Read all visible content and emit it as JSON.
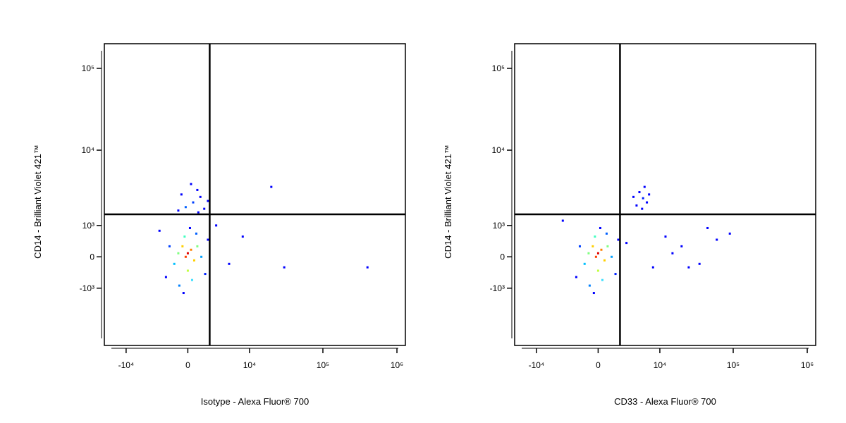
{
  "chart_data": [
    {
      "type": "scatter",
      "x_label": "Isotype - Alexa Fluor® 700",
      "y_label": "CD14 - Brilliant Violet 421™",
      "xlim": [
        -20000,
        1300000
      ],
      "ylim": [
        -6000,
        200000
      ],
      "xticks": [
        {
          "value": -10000,
          "label": "-10⁴"
        },
        0,
        {
          "value": 10000,
          "label": "10⁴"
        },
        {
          "value": 100000,
          "label": "10⁵"
        },
        {
          "value": 1000000,
          "label": "10⁶"
        }
      ],
      "yticks": [
        {
          "value": -1000,
          "label": "-10³"
        },
        0,
        {
          "value": 1000,
          "label": "10³"
        },
        {
          "value": 10000,
          "label": "10⁴"
        },
        {
          "value": 100000,
          "label": "10⁵"
        }
      ],
      "gate": {
        "x": 2200,
        "y": 1500
      },
      "x": [
        0,
        -200,
        300,
        -500,
        600,
        0,
        -900,
        900,
        -300,
        400,
        -1300,
        1300,
        -800,
        800,
        -1800,
        1700,
        -400,
        200,
        -2200,
        2000,
        500,
        1200,
        -200,
        900,
        1600,
        -600,
        300,
        2000,
        1000,
        -900,
        20000,
        8000,
        5000,
        30000,
        400000,
        3000,
        -3000
      ],
      "values": [
        100,
        0,
        200,
        300,
        -100,
        -400,
        100,
        300,
        600,
        -700,
        -200,
        0,
        -900,
        700,
        300,
        -500,
        -1200,
        900,
        -600,
        500,
        2200,
        2600,
        1900,
        3200,
        1800,
        2800,
        3800,
        2300,
        1600,
        1700,
        3500,
        600,
        -200,
        -300,
        -300,
        1000,
        800
      ],
      "colors": [
        "#e00000",
        "#ff4000",
        "#ff8000",
        "#ffd000",
        "#ffd000",
        "#c0ff40",
        "#80ff80",
        "#80ff80",
        "#40ffc0",
        "#40e0ff",
        "#00c0ff",
        "#00a0ff",
        "#0080ff",
        "#0060ff",
        "#0040ff",
        "#0020ff",
        "#0000ff",
        "#0000ff",
        "#0000ff",
        "#0000ff",
        "#0040ff",
        "#0000ff",
        "#0060ff",
        "#0000ff",
        "#0000ff",
        "#0000ff",
        "#0000ff",
        "#0000ff",
        "#0000ff",
        "#0000ff",
        "#0000ff",
        "#0000ff",
        "#0000ff",
        "#0000ff",
        "#0000ff",
        "#0000ff",
        "#0000ff"
      ]
    },
    {
      "type": "scatter",
      "x_label": "CD33 - Alexa Fluor® 700",
      "y_label": "CD14 - Brilliant Violet 421™",
      "xlim": [
        -20000,
        1300000
      ],
      "ylim": [
        -6000,
        200000
      ],
      "xticks": [
        {
          "value": -10000,
          "label": "-10⁴"
        },
        0,
        {
          "value": 10000,
          "label": "10⁴"
        },
        {
          "value": 100000,
          "label": "10⁵"
        },
        {
          "value": 1000000,
          "label": "10⁶"
        }
      ],
      "yticks": [
        {
          "value": -1000,
          "label": "-10³"
        },
        0,
        {
          "value": 1000,
          "label": "10³"
        },
        {
          "value": 10000,
          "label": "10⁴"
        },
        {
          "value": 100000,
          "label": "10⁵"
        }
      ],
      "gate": {
        "x": 2200,
        "y": 1500
      },
      "x": [
        0,
        -200,
        300,
        -500,
        600,
        0,
        -900,
        900,
        -300,
        400,
        -1300,
        1300,
        -800,
        800,
        -1800,
        1700,
        -400,
        200,
        -2200,
        2000,
        5700,
        5000,
        6500,
        4500,
        7000,
        5500,
        6000,
        4000,
        12000,
        20000,
        35000,
        60000,
        90000,
        15000,
        25000,
        45000,
        3000,
        8000,
        -4000
      ],
      "values": [
        100,
        0,
        200,
        300,
        -100,
        -400,
        100,
        300,
        600,
        -700,
        -200,
        0,
        -900,
        700,
        300,
        -500,
        -1200,
        900,
        -600,
        500,
        2500,
        3000,
        2200,
        2000,
        2800,
        1800,
        3500,
        2600,
        600,
        300,
        -200,
        500,
        700,
        100,
        -300,
        900,
        400,
        -300,
        1200
      ],
      "colors": [
        "#e00000",
        "#ff4000",
        "#ff8000",
        "#ffd000",
        "#ffd000",
        "#c0ff40",
        "#80ff80",
        "#80ff80",
        "#40ffc0",
        "#40e0ff",
        "#00c0ff",
        "#00a0ff",
        "#0080ff",
        "#0060ff",
        "#0040ff",
        "#0020ff",
        "#0000ff",
        "#0000ff",
        "#0000ff",
        "#0000ff",
        "#0020ff",
        "#0000ff",
        "#0000ff",
        "#0000ff",
        "#0000ff",
        "#0000ff",
        "#0000ff",
        "#0000ff",
        "#0000ff",
        "#0000ff",
        "#0000ff",
        "#0000ff",
        "#0000ff",
        "#0000ff",
        "#0000ff",
        "#0000ff",
        "#0000ff",
        "#0000ff",
        "#0000ff"
      ]
    }
  ]
}
